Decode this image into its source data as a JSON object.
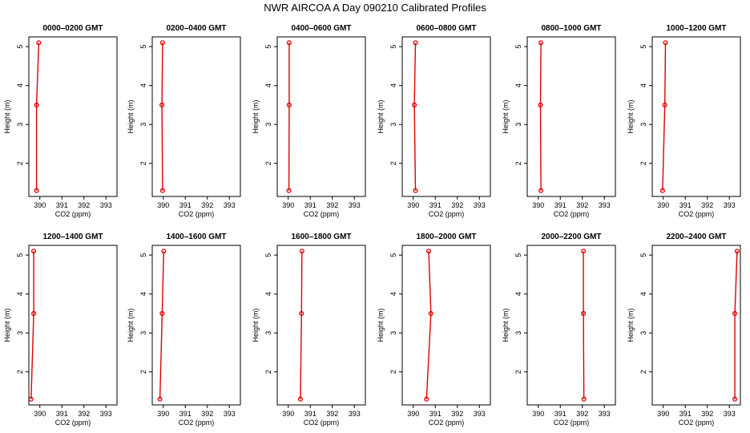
{
  "title": "NWR AIRCOA A  Day 090210  Calibrated Profiles",
  "colors": {
    "profile": "#e00000",
    "axes": "#000000"
  },
  "chart_data": [
    {
      "type": "line",
      "title": "0000–0200 GMT",
      "xlabel": "CO2 (ppm)",
      "ylabel": "Height (m)",
      "xlim": [
        389.5,
        393.5
      ],
      "ylim": [
        1.15,
        5.25
      ],
      "xticks": [
        390,
        391,
        392,
        393
      ],
      "yticks": [
        2,
        3,
        4,
        5
      ],
      "series": [
        {
          "x": [
            389.85,
            389.85,
            389.95
          ],
          "y": [
            1.3,
            3.5,
            5.1
          ]
        }
      ]
    },
    {
      "type": "line",
      "title": "0200–0400 GMT",
      "xlabel": "CO2 (ppm)",
      "ylabel": "Height (m)",
      "xlim": [
        389.5,
        393.5
      ],
      "ylim": [
        1.15,
        5.25
      ],
      "xticks": [
        390,
        391,
        392,
        393
      ],
      "yticks": [
        2,
        3,
        4,
        5
      ],
      "series": [
        {
          "x": [
            389.97,
            389.94,
            389.97
          ],
          "y": [
            1.3,
            3.5,
            5.1
          ]
        }
      ]
    },
    {
      "type": "line",
      "title": "0400–0600 GMT",
      "xlabel": "CO2 (ppm)",
      "ylabel": "Height (m)",
      "xlim": [
        389.5,
        393.5
      ],
      "ylim": [
        1.15,
        5.25
      ],
      "xticks": [
        390,
        391,
        392,
        393
      ],
      "yticks": [
        2,
        3,
        4,
        5
      ],
      "series": [
        {
          "x": [
            390.03,
            390.04,
            390.04
          ],
          "y": [
            1.3,
            3.5,
            5.1
          ]
        }
      ]
    },
    {
      "type": "line",
      "title": "0600–0800 GMT",
      "xlabel": "CO2 (ppm)",
      "ylabel": "Height (m)",
      "xlim": [
        389.5,
        393.5
      ],
      "ylim": [
        1.15,
        5.25
      ],
      "xticks": [
        390,
        391,
        392,
        393
      ],
      "yticks": [
        2,
        3,
        4,
        5
      ],
      "series": [
        {
          "x": [
            390.1,
            390.05,
            390.1
          ],
          "y": [
            1.3,
            3.5,
            5.1
          ]
        }
      ]
    },
    {
      "type": "line",
      "title": "0800–1000 GMT",
      "xlabel": "CO2 (ppm)",
      "ylabel": "Height (m)",
      "xlim": [
        389.5,
        393.5
      ],
      "ylim": [
        1.15,
        5.25
      ],
      "xticks": [
        390,
        391,
        392,
        393
      ],
      "yticks": [
        2,
        3,
        4,
        5
      ],
      "series": [
        {
          "x": [
            390.12,
            390.1,
            390.12
          ],
          "y": [
            1.3,
            3.5,
            5.1
          ]
        }
      ]
    },
    {
      "type": "line",
      "title": "1000–1200 GMT",
      "xlabel": "CO2 (ppm)",
      "ylabel": "Height (m)",
      "xlim": [
        389.5,
        393.5
      ],
      "ylim": [
        1.15,
        5.25
      ],
      "xticks": [
        390,
        391,
        392,
        393
      ],
      "yticks": [
        2,
        3,
        4,
        5
      ],
      "series": [
        {
          "x": [
            389.97,
            390.07,
            390.1
          ],
          "y": [
            1.3,
            3.5,
            5.1
          ]
        }
      ]
    },
    {
      "type": "line",
      "title": "1200–1400 GMT",
      "xlabel": "CO2 (ppm)",
      "ylabel": "Height (m)",
      "xlim": [
        389.5,
        393.5
      ],
      "ylim": [
        1.15,
        5.25
      ],
      "xticks": [
        390,
        391,
        392,
        393
      ],
      "yticks": [
        2,
        3,
        4,
        5
      ],
      "series": [
        {
          "x": [
            389.6,
            389.72,
            389.72
          ],
          "y": [
            1.3,
            3.5,
            5.1
          ]
        }
      ]
    },
    {
      "type": "line",
      "title": "1400–1600 GMT",
      "xlabel": "CO2 (ppm)",
      "ylabel": "Height (m)",
      "xlim": [
        389.5,
        393.5
      ],
      "ylim": [
        1.15,
        5.25
      ],
      "xticks": [
        390,
        391,
        392,
        393
      ],
      "yticks": [
        2,
        3,
        4,
        5
      ],
      "series": [
        {
          "x": [
            389.85,
            389.95,
            390.02
          ],
          "y": [
            1.3,
            3.5,
            5.1
          ]
        }
      ]
    },
    {
      "type": "line",
      "title": "1600–1800 GMT",
      "xlabel": "CO2 (ppm)",
      "ylabel": "Height (m)",
      "xlim": [
        389.5,
        393.5
      ],
      "ylim": [
        1.15,
        5.25
      ],
      "xticks": [
        390,
        391,
        392,
        393
      ],
      "yticks": [
        2,
        3,
        4,
        5
      ],
      "series": [
        {
          "x": [
            390.55,
            390.6,
            390.62
          ],
          "y": [
            1.3,
            3.5,
            5.1
          ]
        }
      ]
    },
    {
      "type": "line",
      "title": "1800–2000 GMT",
      "xlabel": "CO2 (ppm)",
      "ylabel": "Height (m)",
      "xlim": [
        389.5,
        393.5
      ],
      "ylim": [
        1.15,
        5.25
      ],
      "xticks": [
        390,
        391,
        392,
        393
      ],
      "yticks": [
        2,
        3,
        4,
        5
      ],
      "series": [
        {
          "x": [
            390.6,
            390.8,
            390.7
          ],
          "y": [
            1.3,
            3.5,
            5.1
          ]
        }
      ]
    },
    {
      "type": "line",
      "title": "2000–2200 GMT",
      "xlabel": "CO2 (ppm)",
      "ylabel": "Height (m)",
      "xlim": [
        389.5,
        393.5
      ],
      "ylim": [
        1.15,
        5.25
      ],
      "xticks": [
        390,
        391,
        392,
        393
      ],
      "yticks": [
        2,
        3,
        4,
        5
      ],
      "series": [
        {
          "x": [
            392.07,
            392.05,
            392.05
          ],
          "y": [
            1.3,
            3.5,
            5.1
          ]
        }
      ]
    },
    {
      "type": "line",
      "title": "2200–2400 GMT",
      "xlabel": "CO2 (ppm)",
      "ylabel": "Height (m)",
      "xlim": [
        389.5,
        393.5
      ],
      "ylim": [
        1.15,
        5.25
      ],
      "xticks": [
        390,
        391,
        392,
        393
      ],
      "yticks": [
        2,
        3,
        4,
        5
      ],
      "series": [
        {
          "x": [
            393.25,
            393.25,
            393.35
          ],
          "y": [
            1.3,
            3.5,
            5.1
          ]
        }
      ]
    }
  ]
}
